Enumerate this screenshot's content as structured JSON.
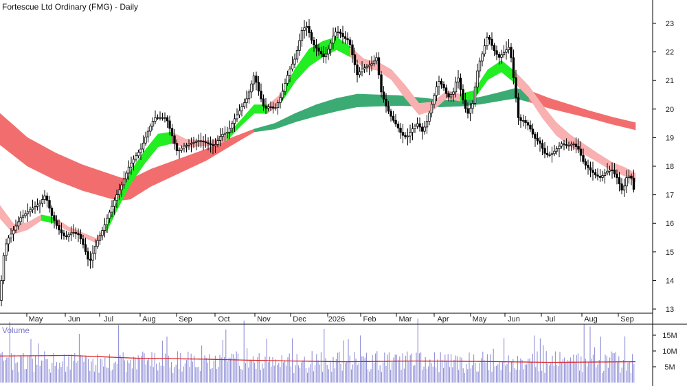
{
  "chart_data": [
    {
      "type": "candlestick",
      "title": "Fortescue Ltd Ordinary (FMG) - Daily",
      "ylim": [
        12.5,
        23.6
      ],
      "y_ticks": [
        "13",
        "14",
        "15",
        "16",
        "17",
        "18",
        "19",
        "20",
        "21",
        "22",
        "23"
      ],
      "x_ticks": [
        "May",
        "Jun",
        "Jul",
        "Aug",
        "Sep",
        "Oct",
        "Nov",
        "Dec",
        "2026",
        "Feb",
        "Mar",
        "Apr",
        "May",
        "Jun",
        "Jul",
        "Aug",
        "Sep"
      ],
      "price_path": [
        [
          0,
          13.3
        ],
        [
          4,
          14.7
        ],
        [
          10,
          15.4
        ],
        [
          18,
          15.7
        ],
        [
          30,
          16.2
        ],
        [
          45,
          16.5
        ],
        [
          58,
          16.7
        ],
        [
          66,
          17.0
        ],
        [
          75,
          16.3
        ],
        [
          85,
          15.8
        ],
        [
          95,
          15.5
        ],
        [
          105,
          15.7
        ],
        [
          115,
          15.6
        ],
        [
          122,
          15.2
        ],
        [
          130,
          14.6
        ],
        [
          140,
          15.3
        ],
        [
          150,
          15.8
        ],
        [
          158,
          16.3
        ],
        [
          168,
          16.9
        ],
        [
          178,
          17.4
        ],
        [
          188,
          18.0
        ],
        [
          196,
          18.3
        ],
        [
          205,
          18.6
        ],
        [
          215,
          19.2
        ],
        [
          225,
          19.7
        ],
        [
          233,
          19.7
        ],
        [
          242,
          19.7
        ],
        [
          250,
          19.1
        ],
        [
          258,
          18.5
        ],
        [
          268,
          18.7
        ],
        [
          278,
          18.8
        ],
        [
          290,
          18.9
        ],
        [
          302,
          18.8
        ],
        [
          312,
          18.7
        ],
        [
          322,
          19.1
        ],
        [
          332,
          19.2
        ],
        [
          340,
          19.6
        ],
        [
          350,
          20.0
        ],
        [
          360,
          20.4
        ],
        [
          370,
          21.2
        ],
        [
          378,
          20.5
        ],
        [
          385,
          20.0
        ],
        [
          392,
          20.1
        ],
        [
          400,
          20.0
        ],
        [
          410,
          20.5
        ],
        [
          420,
          21.3
        ],
        [
          430,
          21.8
        ],
        [
          440,
          22.8
        ],
        [
          447,
          22.9
        ],
        [
          455,
          22.3
        ],
        [
          465,
          22.0
        ],
        [
          472,
          21.8
        ],
        [
          480,
          22.2
        ],
        [
          487,
          22.7
        ],
        [
          494,
          22.7
        ],
        [
          500,
          22.5
        ],
        [
          508,
          22.4
        ],
        [
          514,
          21.8
        ],
        [
          520,
          21.2
        ],
        [
          527,
          21.4
        ],
        [
          535,
          21.5
        ],
        [
          542,
          21.6
        ],
        [
          548,
          21.8
        ],
        [
          555,
          20.6
        ],
        [
          562,
          20.1
        ],
        [
          570,
          19.7
        ],
        [
          578,
          19.4
        ],
        [
          585,
          19.1
        ],
        [
          592,
          19.0
        ],
        [
          600,
          19.3
        ],
        [
          608,
          19.5
        ],
        [
          615,
          19.2
        ],
        [
          622,
          19.6
        ],
        [
          630,
          20.3
        ],
        [
          638,
          21.0
        ],
        [
          645,
          20.8
        ],
        [
          652,
          20.4
        ],
        [
          660,
          20.6
        ],
        [
          666,
          21.2
        ],
        [
          673,
          20.4
        ],
        [
          680,
          19.8
        ],
        [
          688,
          20.2
        ],
        [
          696,
          21.5
        ],
        [
          703,
          22.0
        ],
        [
          710,
          22.6
        ],
        [
          718,
          22.1
        ],
        [
          726,
          21.8
        ],
        [
          734,
          22.0
        ],
        [
          742,
          22.2
        ],
        [
          748,
          21.0
        ],
        [
          755,
          19.6
        ],
        [
          762,
          19.6
        ],
        [
          770,
          19.4
        ],
        [
          778,
          19.0
        ],
        [
          786,
          18.8
        ],
        [
          794,
          18.4
        ],
        [
          802,
          18.4
        ],
        [
          810,
          18.6
        ],
        [
          818,
          18.8
        ],
        [
          826,
          18.7
        ],
        [
          834,
          18.8
        ],
        [
          842,
          18.6
        ],
        [
          850,
          18.1
        ],
        [
          858,
          17.9
        ],
        [
          866,
          17.7
        ],
        [
          874,
          17.6
        ],
        [
          882,
          17.8
        ],
        [
          890,
          17.9
        ],
        [
          898,
          17.6
        ],
        [
          906,
          17.1
        ],
        [
          912,
          17.6
        ],
        [
          918,
          17.7
        ],
        [
          925,
          16.9
        ]
      ],
      "series": [
        {
          "short_ribbon": [
            [
              0,
              16.4
            ],
            [
              20,
              15.8
            ],
            [
              40,
              15.9
            ],
            [
              60,
              16.2
            ],
            [
              80,
              16.1
            ],
            [
              100,
              15.8
            ],
            [
              120,
              15.6
            ],
            [
              140,
              15.4
            ],
            [
              155,
              15.8
            ],
            [
              170,
              16.6
            ],
            [
              190,
              17.6
            ],
            [
              210,
              18.3
            ],
            [
              230,
              18.9
            ],
            [
              250,
              19.0
            ],
            [
              270,
              18.8
            ],
            [
              290,
              18.8
            ],
            [
              310,
              18.8
            ],
            [
              330,
              19.0
            ],
            [
              350,
              19.5
            ],
            [
              370,
              20.0
            ],
            [
              390,
              20.0
            ],
            [
              410,
              20.4
            ],
            [
              430,
              21.2
            ],
            [
              450,
              21.8
            ],
            [
              470,
              22.1
            ],
            [
              490,
              22.3
            ],
            [
              510,
              22.0
            ],
            [
              530,
              21.6
            ],
            [
              550,
              21.5
            ],
            [
              570,
              21.2
            ],
            [
              590,
              20.6
            ],
            [
              610,
              20.0
            ],
            [
              630,
              20.1
            ],
            [
              650,
              20.5
            ],
            [
              670,
              20.4
            ],
            [
              690,
              20.5
            ],
            [
              710,
              21.2
            ],
            [
              730,
              21.5
            ],
            [
              750,
              21.1
            ],
            [
              770,
              20.6
            ],
            [
              790,
              19.9
            ],
            [
              810,
              19.3
            ],
            [
              830,
              18.9
            ],
            [
              850,
              18.6
            ],
            [
              870,
              18.3
            ],
            [
              890,
              18.0
            ],
            [
              910,
              17.8
            ],
            [
              925,
              17.6
            ]
          ],
          "short_width": [
            0.45,
            0.35,
            0.25,
            0.2,
            0.2,
            0.15,
            0.15,
            0.15,
            0.2,
            0.3,
            0.45,
            0.45,
            0.45,
            0.4,
            0.3,
            0.2,
            0.2,
            0.2,
            0.2,
            0.3,
            0.3,
            0.3,
            0.45,
            0.6,
            0.55,
            0.45,
            0.35,
            0.3,
            0.3,
            0.35,
            0.45,
            0.4,
            0.3,
            0.25,
            0.25,
            0.3,
            0.35,
            0.4,
            0.4,
            0.4,
            0.45,
            0.45,
            0.4,
            0.35,
            0.3,
            0.3,
            0.3,
            0.3
          ],
          "short_state": [
            "down",
            "down",
            "down",
            "up",
            "down",
            "down",
            "down",
            "down",
            "up",
            "up",
            "up",
            "up",
            "up",
            "down",
            "down",
            "down",
            "down",
            "up",
            "up",
            "up",
            "down",
            "up",
            "up",
            "up",
            "up",
            "up",
            "down",
            "down",
            "down",
            "down",
            "down",
            "down",
            "down",
            "down",
            "up",
            "up",
            "up",
            "up",
            "down",
            "down",
            "down",
            "down",
            "down",
            "down",
            "down",
            "down",
            "down",
            "down"
          ],
          "long_ribbon": [
            [
              0,
              19.3
            ],
            [
              40,
              18.5
            ],
            [
              80,
              18.0
            ],
            [
              120,
              17.6
            ],
            [
              160,
              17.3
            ],
            [
              175,
              17.2
            ],
            [
              190,
              17.2
            ],
            [
              220,
              17.6
            ],
            [
              260,
              18.0
            ],
            [
              300,
              18.4
            ],
            [
              340,
              18.9
            ],
            [
              370,
              19.25
            ],
            [
              400,
              19.4
            ],
            [
              430,
              19.7
            ],
            [
              460,
              19.95
            ],
            [
              490,
              20.15
            ],
            [
              520,
              20.3
            ],
            [
              550,
              20.3
            ],
            [
              580,
              20.3
            ],
            [
              610,
              20.25
            ],
            [
              640,
              20.2
            ],
            [
              670,
              20.2
            ],
            [
              700,
              20.3
            ],
            [
              730,
              20.45
            ],
            [
              750,
              20.55
            ],
            [
              770,
              20.45
            ],
            [
              800,
              20.2
            ],
            [
              830,
              20.0
            ],
            [
              860,
              19.8
            ],
            [
              890,
              19.6
            ],
            [
              925,
              19.4
            ]
          ],
          "long_width": [
            1.1,
            1.0,
            0.95,
            0.9,
            0.85,
            0.8,
            0.7,
            0.6,
            0.5,
            0.4,
            0.25,
            0.1,
            0.2,
            0.3,
            0.4,
            0.45,
            0.45,
            0.4,
            0.35,
            0.3,
            0.25,
            0.2,
            0.25,
            0.3,
            0.35,
            0.4,
            0.35,
            0.3,
            0.25,
            0.25,
            0.25
          ],
          "long_state": [
            "down",
            "down",
            "down",
            "down",
            "down",
            "down",
            "down",
            "down",
            "down",
            "down",
            "down",
            "up",
            "up",
            "up",
            "up",
            "up",
            "up",
            "up",
            "up",
            "up",
            "up",
            "up",
            "up",
            "up",
            "up",
            "down",
            "down",
            "down",
            "down",
            "down",
            "down"
          ]
        }
      ],
      "colors": {
        "candle": "#000000",
        "short_up": "#22ee22",
        "short_down": "#f8b0b0",
        "short_cross": "#ff6a1a",
        "long_up": "#3bab73",
        "long_down": "#f26e6e",
        "long_cross": "#f06a28",
        "axis": "#000000"
      }
    },
    {
      "type": "bar",
      "label": "Volume",
      "y_ticks": [
        "15M",
        "10M",
        "5M"
      ],
      "ylim": [
        0,
        20
      ],
      "average_color": "#dd2222",
      "bar_color": "#8e8ed8",
      "average": [
        [
          0,
          8.4
        ],
        [
          100,
          8.6
        ],
        [
          200,
          7.7
        ],
        [
          300,
          7.4
        ],
        [
          400,
          6.9
        ],
        [
          500,
          6.6
        ],
        [
          600,
          6.8
        ],
        [
          700,
          6.7
        ],
        [
          800,
          6.4
        ],
        [
          925,
          6.6
        ]
      ]
    }
  ]
}
